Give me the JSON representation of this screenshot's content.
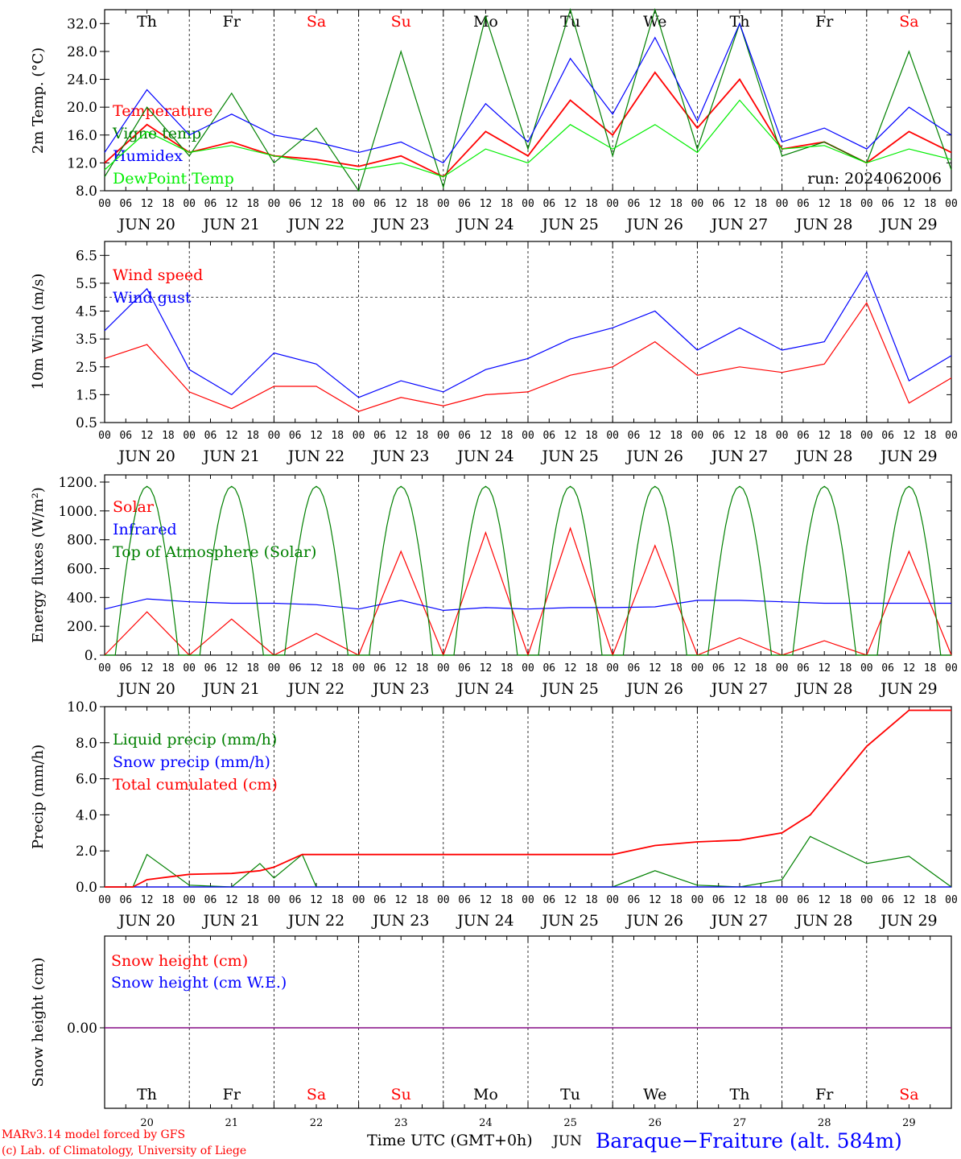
{
  "footer": {
    "credit_line1": "MARv3.14 model forced by GFS",
    "credit_line2": "(c) Lab. of Climatology, University of Liege",
    "time_axis_label": "Time UTC (GMT+0h)",
    "month_label": "JUN",
    "station": "Baraque−Fraiture (alt. 584m)"
  },
  "colors": {
    "red": "#ff0000",
    "green": "#008000",
    "blue": "#0000ff",
    "lightgreen": "#00ee00",
    "purple": "#800080"
  },
  "days": [
    {
      "abbr": "Th",
      "date": "JUN 20",
      "num": "20",
      "weekend": false
    },
    {
      "abbr": "Fr",
      "date": "JUN 21",
      "num": "21",
      "weekend": false
    },
    {
      "abbr": "Sa",
      "date": "JUN 22",
      "num": "22",
      "weekend": true
    },
    {
      "abbr": "Su",
      "date": "JUN 23",
      "num": "23",
      "weekend": true
    },
    {
      "abbr": "Mo",
      "date": "JUN 24",
      "num": "24",
      "weekend": false
    },
    {
      "abbr": "Tu",
      "date": "JUN 25",
      "num": "25",
      "weekend": false
    },
    {
      "abbr": "We",
      "date": "JUN 26",
      "num": "26",
      "weekend": false
    },
    {
      "abbr": "Th",
      "date": "JUN 27",
      "num": "27",
      "weekend": false
    },
    {
      "abbr": "Fr",
      "date": "JUN 28",
      "num": "28",
      "weekend": false
    },
    {
      "abbr": "Sa",
      "date": "JUN 29",
      "num": "29",
      "weekend": true
    }
  ],
  "hour_ticks": [
    "00",
    "06",
    "12",
    "18"
  ],
  "chart_data": [
    {
      "type": "line",
      "id": "temp",
      "ylabel": "2m Temp. (°C)",
      "ylim": [
        8,
        34
      ],
      "yticks": [
        8,
        12,
        16,
        20,
        24,
        28,
        32
      ],
      "ytick_labels": [
        "8.0",
        "12.0",
        "16.0",
        "20.0",
        "24.0",
        "28.0",
        "32.0"
      ],
      "annotation": "run: 2024062006",
      "x": [
        0,
        12,
        24,
        36,
        48,
        60,
        72,
        84,
        96,
        108,
        120,
        132,
        144,
        156,
        168,
        180,
        192,
        204,
        216,
        228,
        240
      ],
      "series": [
        {
          "name": "Temperature",
          "color": "#ff0000",
          "values": [
            12,
            17.5,
            13.5,
            15,
            13,
            12.5,
            11.5,
            13,
            10,
            16.5,
            13,
            21,
            16,
            25,
            17,
            24,
            14,
            15,
            12,
            16.5,
            13.5
          ]
        },
        {
          "name": "Vigne temp",
          "color": "#008000",
          "values": [
            10,
            20,
            13,
            22,
            12,
            17,
            8,
            28,
            8.5,
            33,
            14,
            34,
            13,
            34,
            14,
            32,
            13,
            15,
            12,
            28,
            11
          ]
        },
        {
          "name": "Humidex",
          "color": "#0000ff",
          "values": [
            13.5,
            22.5,
            16,
            19,
            16,
            15,
            13.5,
            15,
            12,
            20.5,
            15,
            27,
            19,
            30,
            18,
            32,
            15,
            17,
            14,
            20,
            16
          ]
        },
        {
          "name": "DewPoint Temp",
          "color": "#00ee00",
          "values": [
            11,
            16.5,
            13.5,
            14.5,
            13,
            12,
            11,
            12,
            10,
            14,
            12,
            17.5,
            14,
            17.5,
            13.5,
            21,
            14,
            14.5,
            12,
            14,
            12.5
          ]
        }
      ]
    },
    {
      "type": "line",
      "id": "wind",
      "ylabel": "10m Wind (m/s)",
      "ylim": [
        0.5,
        7
      ],
      "yticks": [
        0.5,
        1.5,
        2.5,
        3.5,
        4.5,
        5.5,
        6.5
      ],
      "ytick_labels": [
        "0.5",
        "1.5",
        "2.5",
        "3.5",
        "4.5",
        "5.5",
        "6.5"
      ],
      "reference_line": 5,
      "x": [
        0,
        12,
        24,
        36,
        48,
        60,
        72,
        84,
        96,
        108,
        120,
        132,
        144,
        156,
        168,
        180,
        192,
        204,
        216,
        228,
        240
      ],
      "series": [
        {
          "name": "Wind speed",
          "color": "#ff0000",
          "values": [
            2.8,
            3.3,
            1.6,
            1,
            1.8,
            1.8,
            0.9,
            1.4,
            1.1,
            1.5,
            1.6,
            2.2,
            2.5,
            3.4,
            2.2,
            2.5,
            2.3,
            2.6,
            4.8,
            1.2,
            2.1
          ]
        },
        {
          "name": "Wind gust",
          "color": "#0000ff",
          "values": [
            3.8,
            5.3,
            2.4,
            1.5,
            3,
            2.6,
            1.4,
            2,
            1.6,
            2.4,
            2.8,
            3.5,
            3.9,
            4.5,
            3.1,
            3.9,
            3.1,
            3.4,
            5.9,
            2,
            2.9
          ]
        }
      ]
    },
    {
      "type": "line",
      "id": "flux",
      "ylabel": "Energy fluxes (W/m²)",
      "ylim": [
        0,
        1250
      ],
      "yticks": [
        0,
        200,
        400,
        600,
        800,
        1000,
        1200
      ],
      "ytick_labels": [
        "0.",
        "200.",
        "400.",
        "600.",
        "800.",
        "1000.",
        "1200."
      ],
      "x": [
        0,
        12,
        24,
        36,
        48,
        60,
        72,
        84,
        96,
        108,
        120,
        132,
        144,
        156,
        168,
        180,
        192,
        204,
        216,
        228,
        240
      ],
      "series": [
        {
          "name": "Solar",
          "color": "#ff0000",
          "values": [
            0,
            300,
            0,
            250,
            0,
            150,
            0,
            720,
            0,
            850,
            0,
            880,
            0,
            760,
            0,
            120,
            0,
            100,
            0,
            720,
            0
          ]
        },
        {
          "name": "Infrared",
          "color": "#0000ff",
          "values": [
            320,
            390,
            370,
            360,
            360,
            350,
            320,
            380,
            310,
            330,
            320,
            330,
            330,
            335,
            380,
            380,
            370,
            360,
            360,
            360,
            360
          ]
        },
        {
          "name": "Top of Atmosphere (Solar)",
          "color": "#008000",
          "peak": 1170
        }
      ]
    },
    {
      "type": "line",
      "id": "precip",
      "ylabel": "Precip (mm/h)",
      "ylim": [
        0,
        10
      ],
      "yticks": [
        0,
        2,
        4,
        6,
        8,
        10
      ],
      "ytick_labels": [
        "0.0",
        "2.0",
        "4.0",
        "6.0",
        "8.0",
        "10.0"
      ],
      "x": [
        0,
        8,
        12,
        24,
        36,
        44,
        48,
        56,
        60,
        72,
        84,
        96,
        108,
        120,
        132,
        144,
        156,
        168,
        180,
        192,
        200,
        216,
        228,
        240
      ],
      "series": [
        {
          "name": "Liquid precip (mm/h)",
          "color": "#008000",
          "values": [
            0,
            0,
            1.8,
            0.1,
            0,
            1.3,
            0.5,
            1.8,
            0,
            0,
            0,
            0,
            0,
            0,
            0,
            0,
            0.9,
            0.1,
            0,
            0.4,
            2.8,
            1.3,
            1.7,
            0
          ]
        },
        {
          "name": "Snow precip (mm/h)",
          "color": "#0000ff",
          "values": [
            0,
            0,
            0,
            0,
            0,
            0,
            0,
            0,
            0,
            0,
            0,
            0,
            0,
            0,
            0,
            0,
            0,
            0,
            0,
            0,
            0,
            0,
            0,
            0
          ]
        },
        {
          "name": "Total cumulated (cm)",
          "color": "#ff0000",
          "values": [
            0,
            0,
            0.4,
            0.7,
            0.75,
            0.9,
            1.1,
            1.8,
            1.8,
            1.8,
            1.8,
            1.8,
            1.8,
            1.8,
            1.8,
            1.8,
            2.3,
            2.5,
            2.6,
            3.0,
            4.0,
            7.8,
            9.8,
            9.8
          ]
        }
      ]
    },
    {
      "type": "line",
      "id": "snow",
      "ylabel": "Snow height (cm)",
      "ytick_labels": [
        "0.00"
      ],
      "x": [
        0,
        240
      ],
      "series": [
        {
          "name": "Snow height (cm)",
          "color": "#ff0000",
          "values": [
            0,
            0
          ]
        },
        {
          "name": "Snow height (cm W.E.)",
          "color": "#0000ff",
          "values": [
            0,
            0
          ]
        }
      ]
    }
  ]
}
